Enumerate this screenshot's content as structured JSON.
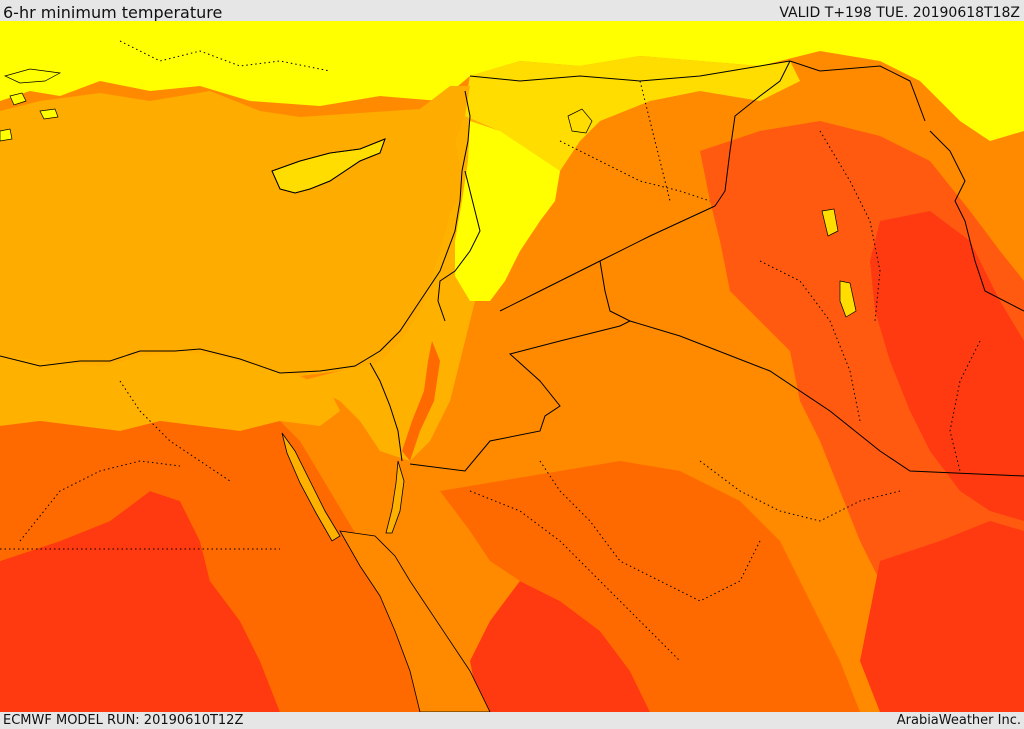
{
  "header": {
    "title": "6-hr minimum temperature",
    "valid_time": "VALID T+198 TUE. 20190618T18Z"
  },
  "footer": {
    "model_run": "ECMWF MODEL RUN: 20190610T12Z",
    "credit": "ArabiaWeather Inc."
  },
  "colors": {
    "yellow": "#ffff00",
    "gold": "#ffdd00",
    "amber": "#ffb100",
    "orange": "#ff8a00",
    "dark_orange": "#ff6600",
    "red_orange": "#ff3a10",
    "sea": "#ffac00",
    "borders": "#000000"
  }
}
